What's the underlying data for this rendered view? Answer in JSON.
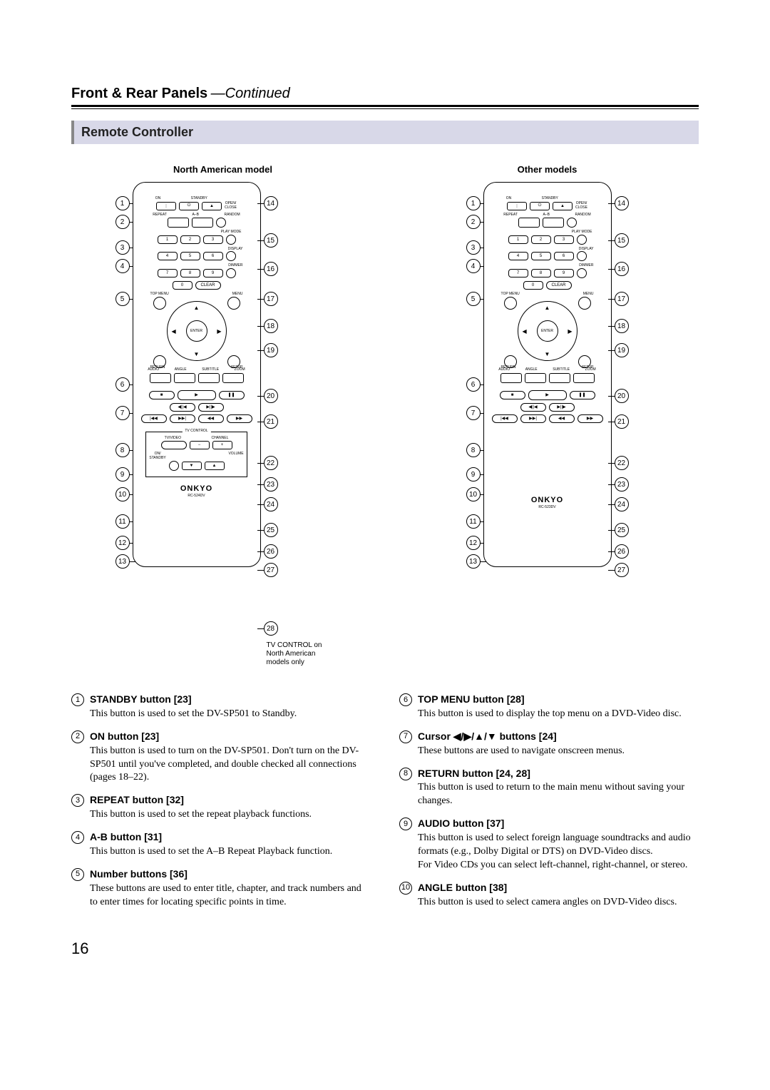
{
  "page": {
    "header_title": "Front & Rear Panels",
    "header_continued": "—Continued",
    "section_title": "Remote Controller",
    "page_number": "16"
  },
  "remotes": {
    "left_caption": "North American model",
    "right_caption": "Other models",
    "tv_control_note": "TV CONTROL on North American models only",
    "brand": "ONKYO",
    "model_left": "RC-524DV",
    "model_right": "RC-523DV",
    "labels": {
      "on": "ON",
      "standby": "STANDBY",
      "open_close": "OPEN/\nCLOSE",
      "repeat": "REPEAT",
      "a_b": "A–B",
      "random": "RANDOM",
      "play_mode": "PLAY MODE",
      "display": "DISPLAY",
      "dimmer": "DIMMER",
      "clear": "CLEAR",
      "top_menu": "TOP MENU",
      "menu": "MENU",
      "enter": "ENTER",
      "return": "RETURN",
      "setup": "SETUP",
      "audio": "AUDIO",
      "angle": "ANGLE",
      "subtitle": "SUBTITLE",
      "zoom": "ZOOM",
      "tv_control": "TV CONTROL",
      "tv_video": "TV/VIDEO",
      "channel": "CHANNEL",
      "on_standby": "ON/\nSTANDBY",
      "volume": "VOLUME"
    },
    "numbers": [
      "1",
      "2",
      "3",
      "4",
      "5",
      "6",
      "7",
      "8",
      "9",
      "0"
    ],
    "callouts_left": [
      "1",
      "2",
      "3",
      "4",
      "5",
      "6",
      "7",
      "8",
      "9",
      "10",
      "11",
      "12",
      "13"
    ],
    "callouts_right": [
      "14",
      "15",
      "16",
      "17",
      "18",
      "19",
      "20",
      "21",
      "22",
      "23",
      "24",
      "25",
      "26",
      "27",
      "28"
    ],
    "callouts_right_other": [
      "14",
      "15",
      "16",
      "17",
      "18",
      "19",
      "20",
      "21",
      "22",
      "23",
      "24",
      "25",
      "26",
      "27"
    ]
  },
  "descriptions": {
    "left": [
      {
        "num": "1",
        "title": "STANDBY button [23]",
        "text": "This button is used to set the DV-SP501 to Standby."
      },
      {
        "num": "2",
        "title": "ON button [23]",
        "text": "This button is used to turn on the DV-SP501. Don't turn on the DV-SP501 until you've completed, and double checked all connections (pages 18–22)."
      },
      {
        "num": "3",
        "title": "REPEAT button [32]",
        "text": "This button is used to set the repeat playback functions."
      },
      {
        "num": "4",
        "title": "A-B button [31]",
        "text": "This button is used to set the A–B Repeat Playback function."
      },
      {
        "num": "5",
        "title": "Number buttons [36]",
        "text": "These buttons are used to enter title, chapter, and track numbers and to enter times for locating specific points in time."
      }
    ],
    "right": [
      {
        "num": "6",
        "title": "TOP MENU button [28]",
        "text": "This button is used to display the top menu on a DVD-Video disc."
      },
      {
        "num": "7",
        "title": "Cursor ◀/▶/▲/▼ buttons [24]",
        "text": "These buttons are used to navigate onscreen menus."
      },
      {
        "num": "8",
        "title": "RETURN button [24, 28]",
        "text": "This button is used to return to the main menu without saving your changes."
      },
      {
        "num": "9",
        "title": "AUDIO button [37]",
        "text": "This button is used to select foreign language soundtracks and audio formats (e.g., Dolby Digital or DTS) on DVD-Video discs.\nFor Video CDs you can select left-channel, right-channel, or stereo."
      },
      {
        "num": "10",
        "title": "ANGLE button [38]",
        "text": "This button is used to select camera angles on DVD-Video discs."
      }
    ]
  }
}
